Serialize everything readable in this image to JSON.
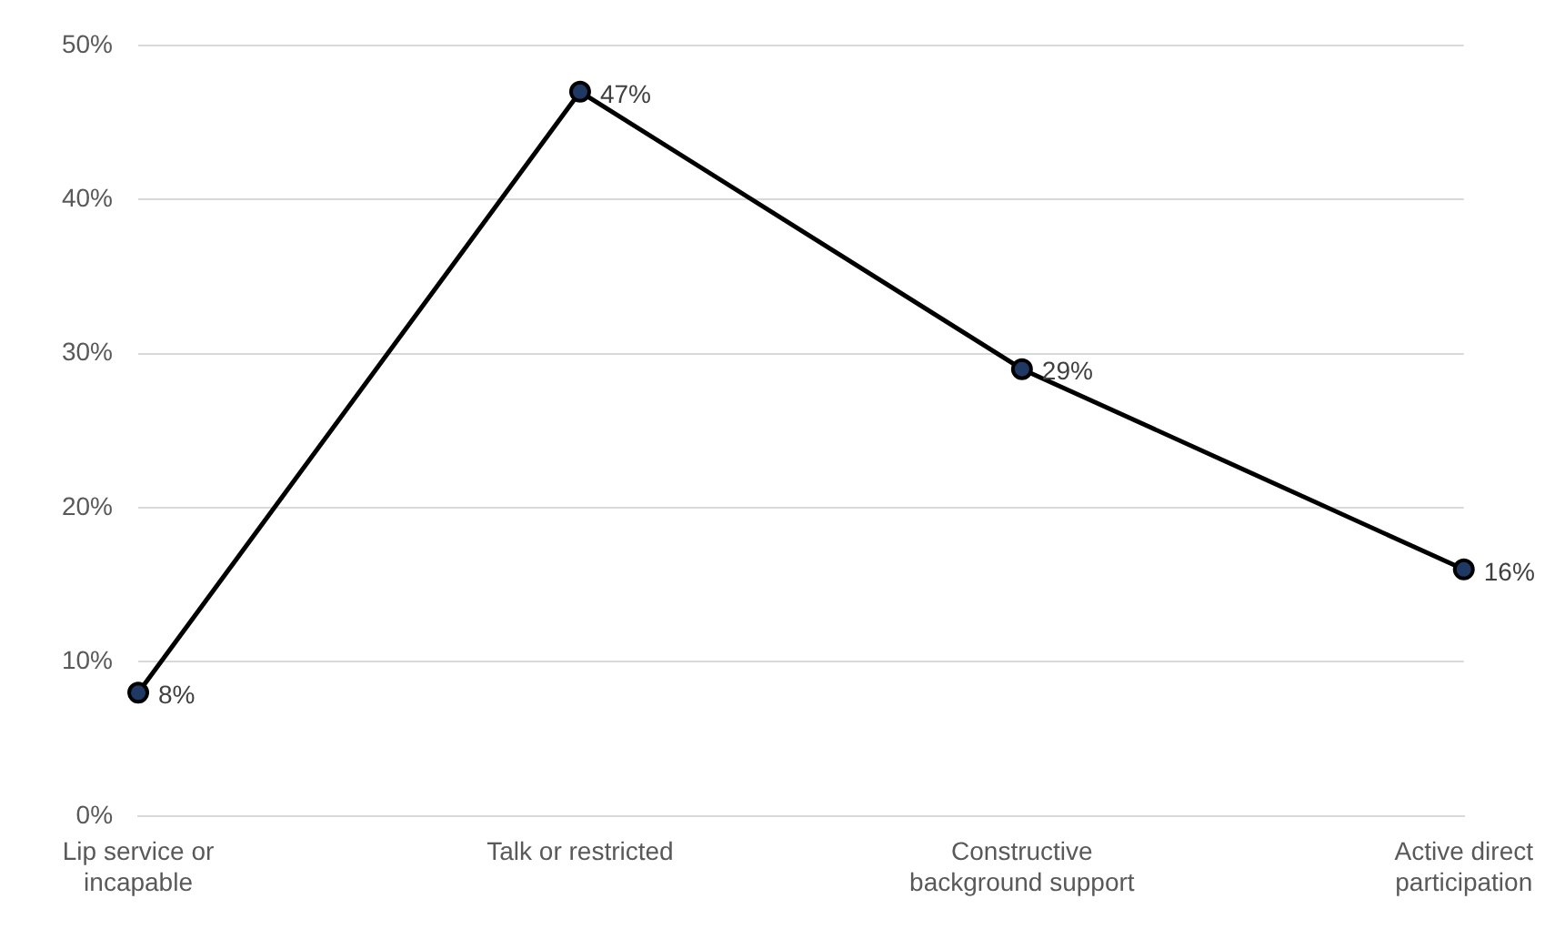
{
  "chart_data": {
    "type": "line",
    "categories": [
      "Lip service or incapable",
      "Talk or restricted",
      "Constructive background support",
      "Active direct participation"
    ],
    "values": [
      8,
      47,
      29,
      16
    ],
    "value_labels": [
      "8%",
      "47%",
      "29%",
      "16%"
    ],
    "color": "#000000",
    "ylim": [
      0,
      50
    ],
    "yticks": [
      {
        "value": 0,
        "label": "0%"
      },
      {
        "value": 10,
        "label": "10%"
      },
      {
        "value": 20,
        "label": "20%"
      },
      {
        "value": 30,
        "label": "30%"
      },
      {
        "value": 40,
        "label": "40%"
      },
      {
        "value": 50,
        "label": "50%"
      }
    ],
    "grid": "y",
    "marker": "circle",
    "line_style": "solid",
    "legend": false
  }
}
